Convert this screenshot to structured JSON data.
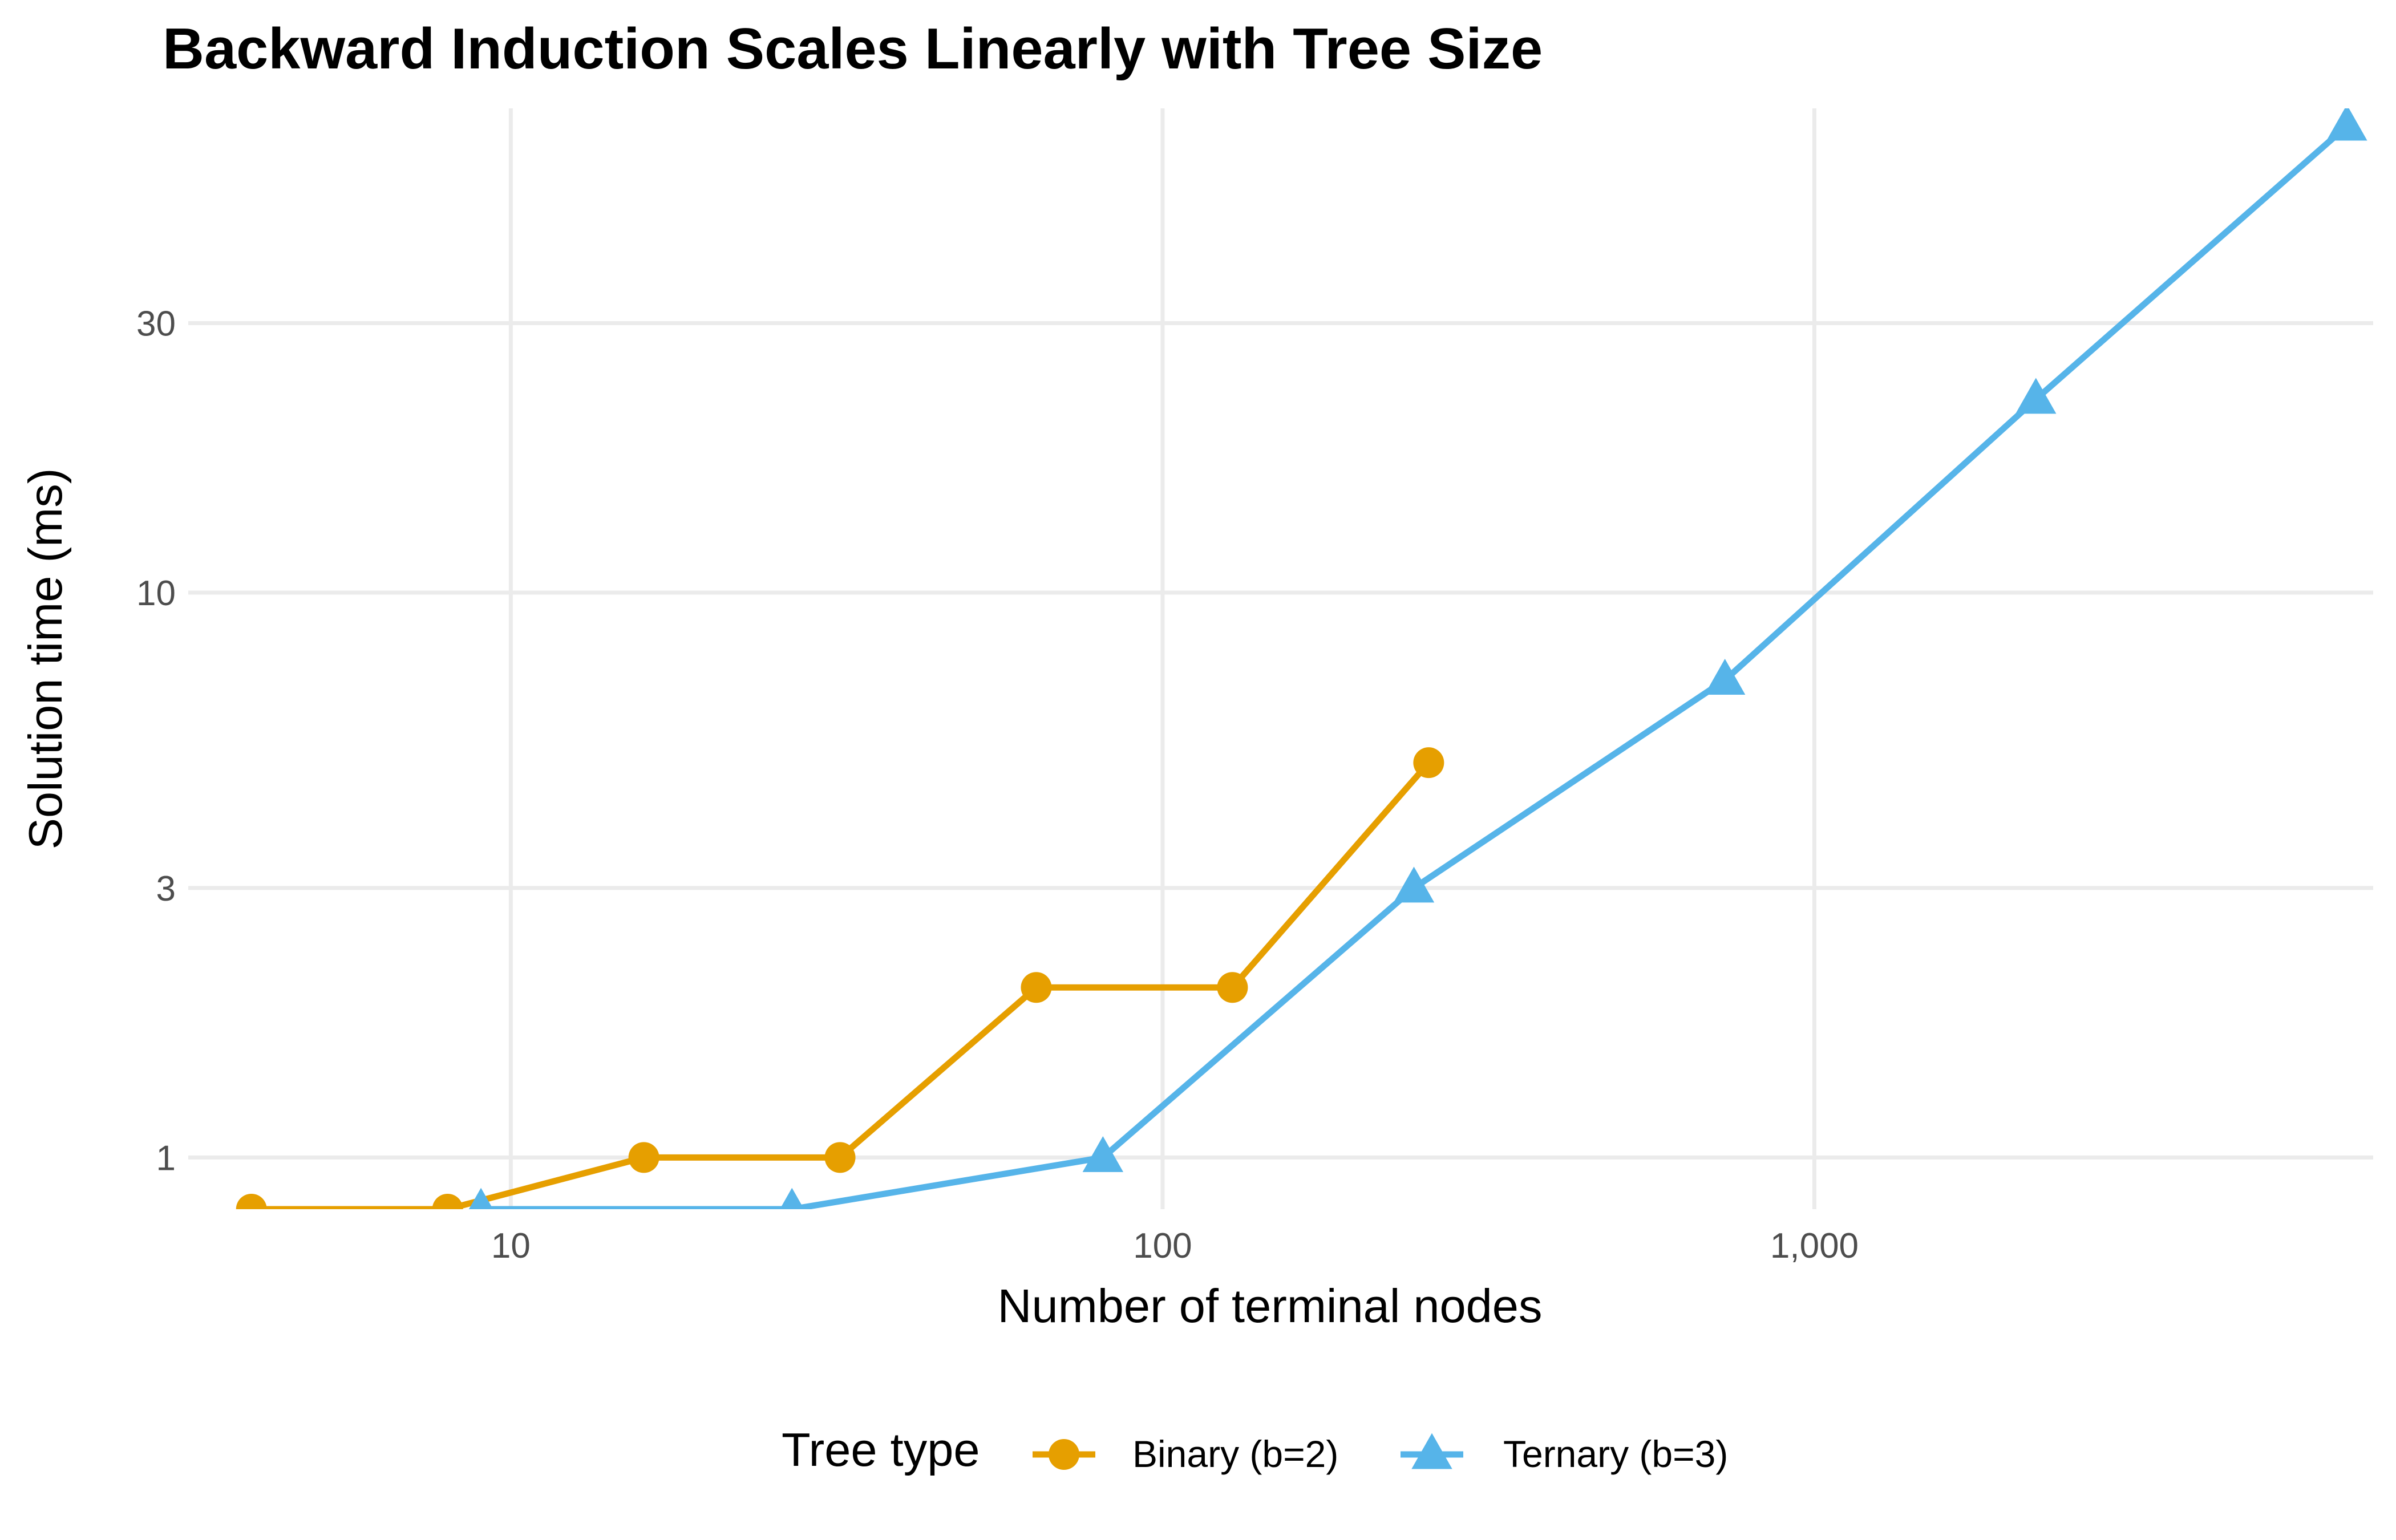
{
  "chart_data": {
    "type": "line",
    "title": "Backward Induction Scales Linearly with Tree Size",
    "xlabel": "Number of terminal nodes",
    "ylabel": "Solution time (ms)",
    "x_scale": "log10",
    "y_scale": "log10",
    "xlim": [
      3.2,
      7200
    ],
    "ylim": [
      0.81,
      72
    ],
    "x_ticks": [
      10,
      100,
      1000
    ],
    "x_tick_labels": [
      "10",
      "100",
      "1,000"
    ],
    "y_ticks": [
      1,
      3,
      10,
      30
    ],
    "y_tick_labels": [
      "1",
      "3",
      "10",
      "30"
    ],
    "grid": true,
    "legend": {
      "title": "Tree type",
      "position": "bottom"
    },
    "series": [
      {
        "name": "Binary (b=2)",
        "color": "#E69F00",
        "marker": "circle",
        "x": [
          4,
          8,
          16,
          32,
          64,
          128,
          256
        ],
        "y": [
          0.81,
          0.81,
          1,
          1,
          2,
          2,
          5
        ]
      },
      {
        "name": "Ternary (b=3)",
        "color": "#56B4E9",
        "marker": "triangle",
        "x": [
          9,
          27,
          81,
          243,
          729,
          2187,
          6561
        ],
        "y": [
          0.81,
          0.81,
          1,
          3,
          7,
          22,
          67
        ]
      }
    ]
  }
}
